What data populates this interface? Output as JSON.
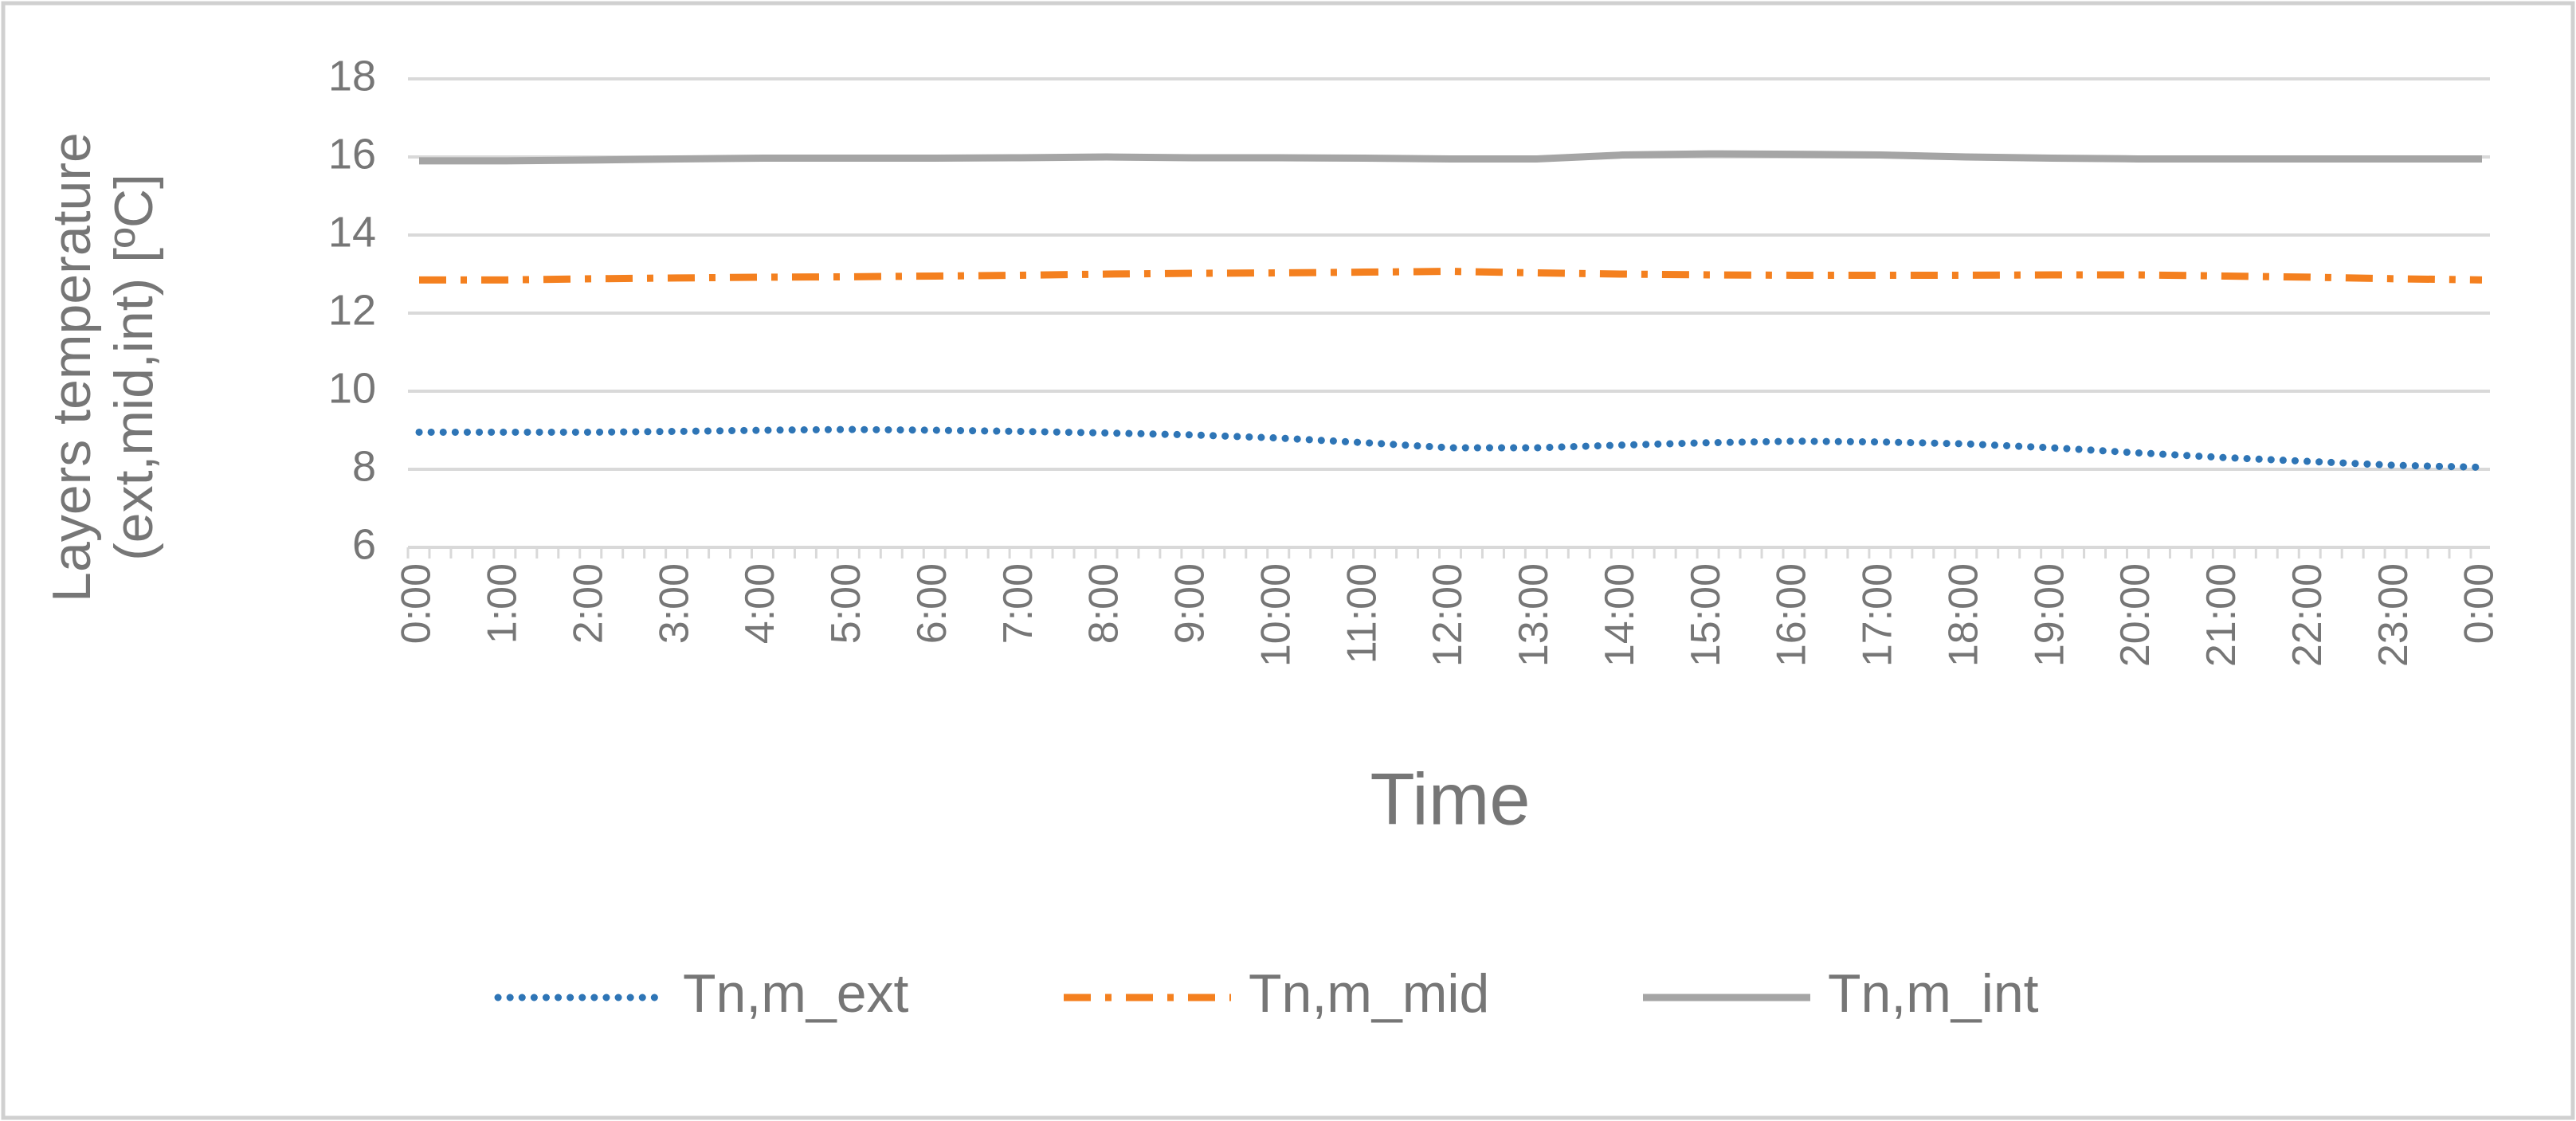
{
  "chart_data": {
    "type": "line",
    "x_label": "Time",
    "y_label": [
      "Layers temperature",
      "(ext,mid,int) [ºC]"
    ],
    "categories": [
      "0:00",
      "1:00",
      "2:00",
      "3:00",
      "4:00",
      "5:00",
      "6:00",
      "7:00",
      "8:00",
      "9:00",
      "10:00",
      "11:00",
      "12:00",
      "13:00",
      "14:00",
      "15:00",
      "16:00",
      "17:00",
      "18:00",
      "19:00",
      "20:00",
      "21:00",
      "22:00",
      "23:00",
      "0:00"
    ],
    "series": [
      {
        "name": "Tn,m_ext",
        "color": "#2e75b6",
        "style": "dotted",
        "values": [
          8.95,
          8.95,
          8.95,
          8.97,
          9.0,
          9.02,
          9.0,
          8.97,
          8.93,
          8.88,
          8.8,
          8.68,
          8.55,
          8.55,
          8.62,
          8.68,
          8.72,
          8.7,
          8.65,
          8.55,
          8.42,
          8.3,
          8.2,
          8.1,
          8.05
        ]
      },
      {
        "name": "Tn,m_mid",
        "color": "#f4801f",
        "style": "dash-dot",
        "values": [
          12.85,
          12.85,
          12.88,
          12.9,
          12.92,
          12.93,
          12.95,
          12.97,
          13.0,
          13.02,
          13.03,
          13.05,
          13.07,
          13.03,
          13.0,
          12.98,
          12.97,
          12.97,
          12.97,
          12.98,
          12.98,
          12.95,
          12.92,
          12.88,
          12.85
        ]
      },
      {
        "name": "Tn,m_int",
        "color": "#a5a5a5",
        "style": "solid",
        "values": [
          15.9,
          15.9,
          15.92,
          15.95,
          15.97,
          15.97,
          15.97,
          15.98,
          16.0,
          15.98,
          15.98,
          15.97,
          15.95,
          15.95,
          16.05,
          16.08,
          16.07,
          16.05,
          16.0,
          15.97,
          15.95,
          15.95,
          15.95,
          15.95,
          15.95
        ]
      }
    ],
    "ylim": [
      6,
      18
    ],
    "yticks": [
      6,
      8,
      10,
      12,
      14,
      16,
      18
    ],
    "grid": true,
    "legend": "bottom"
  }
}
